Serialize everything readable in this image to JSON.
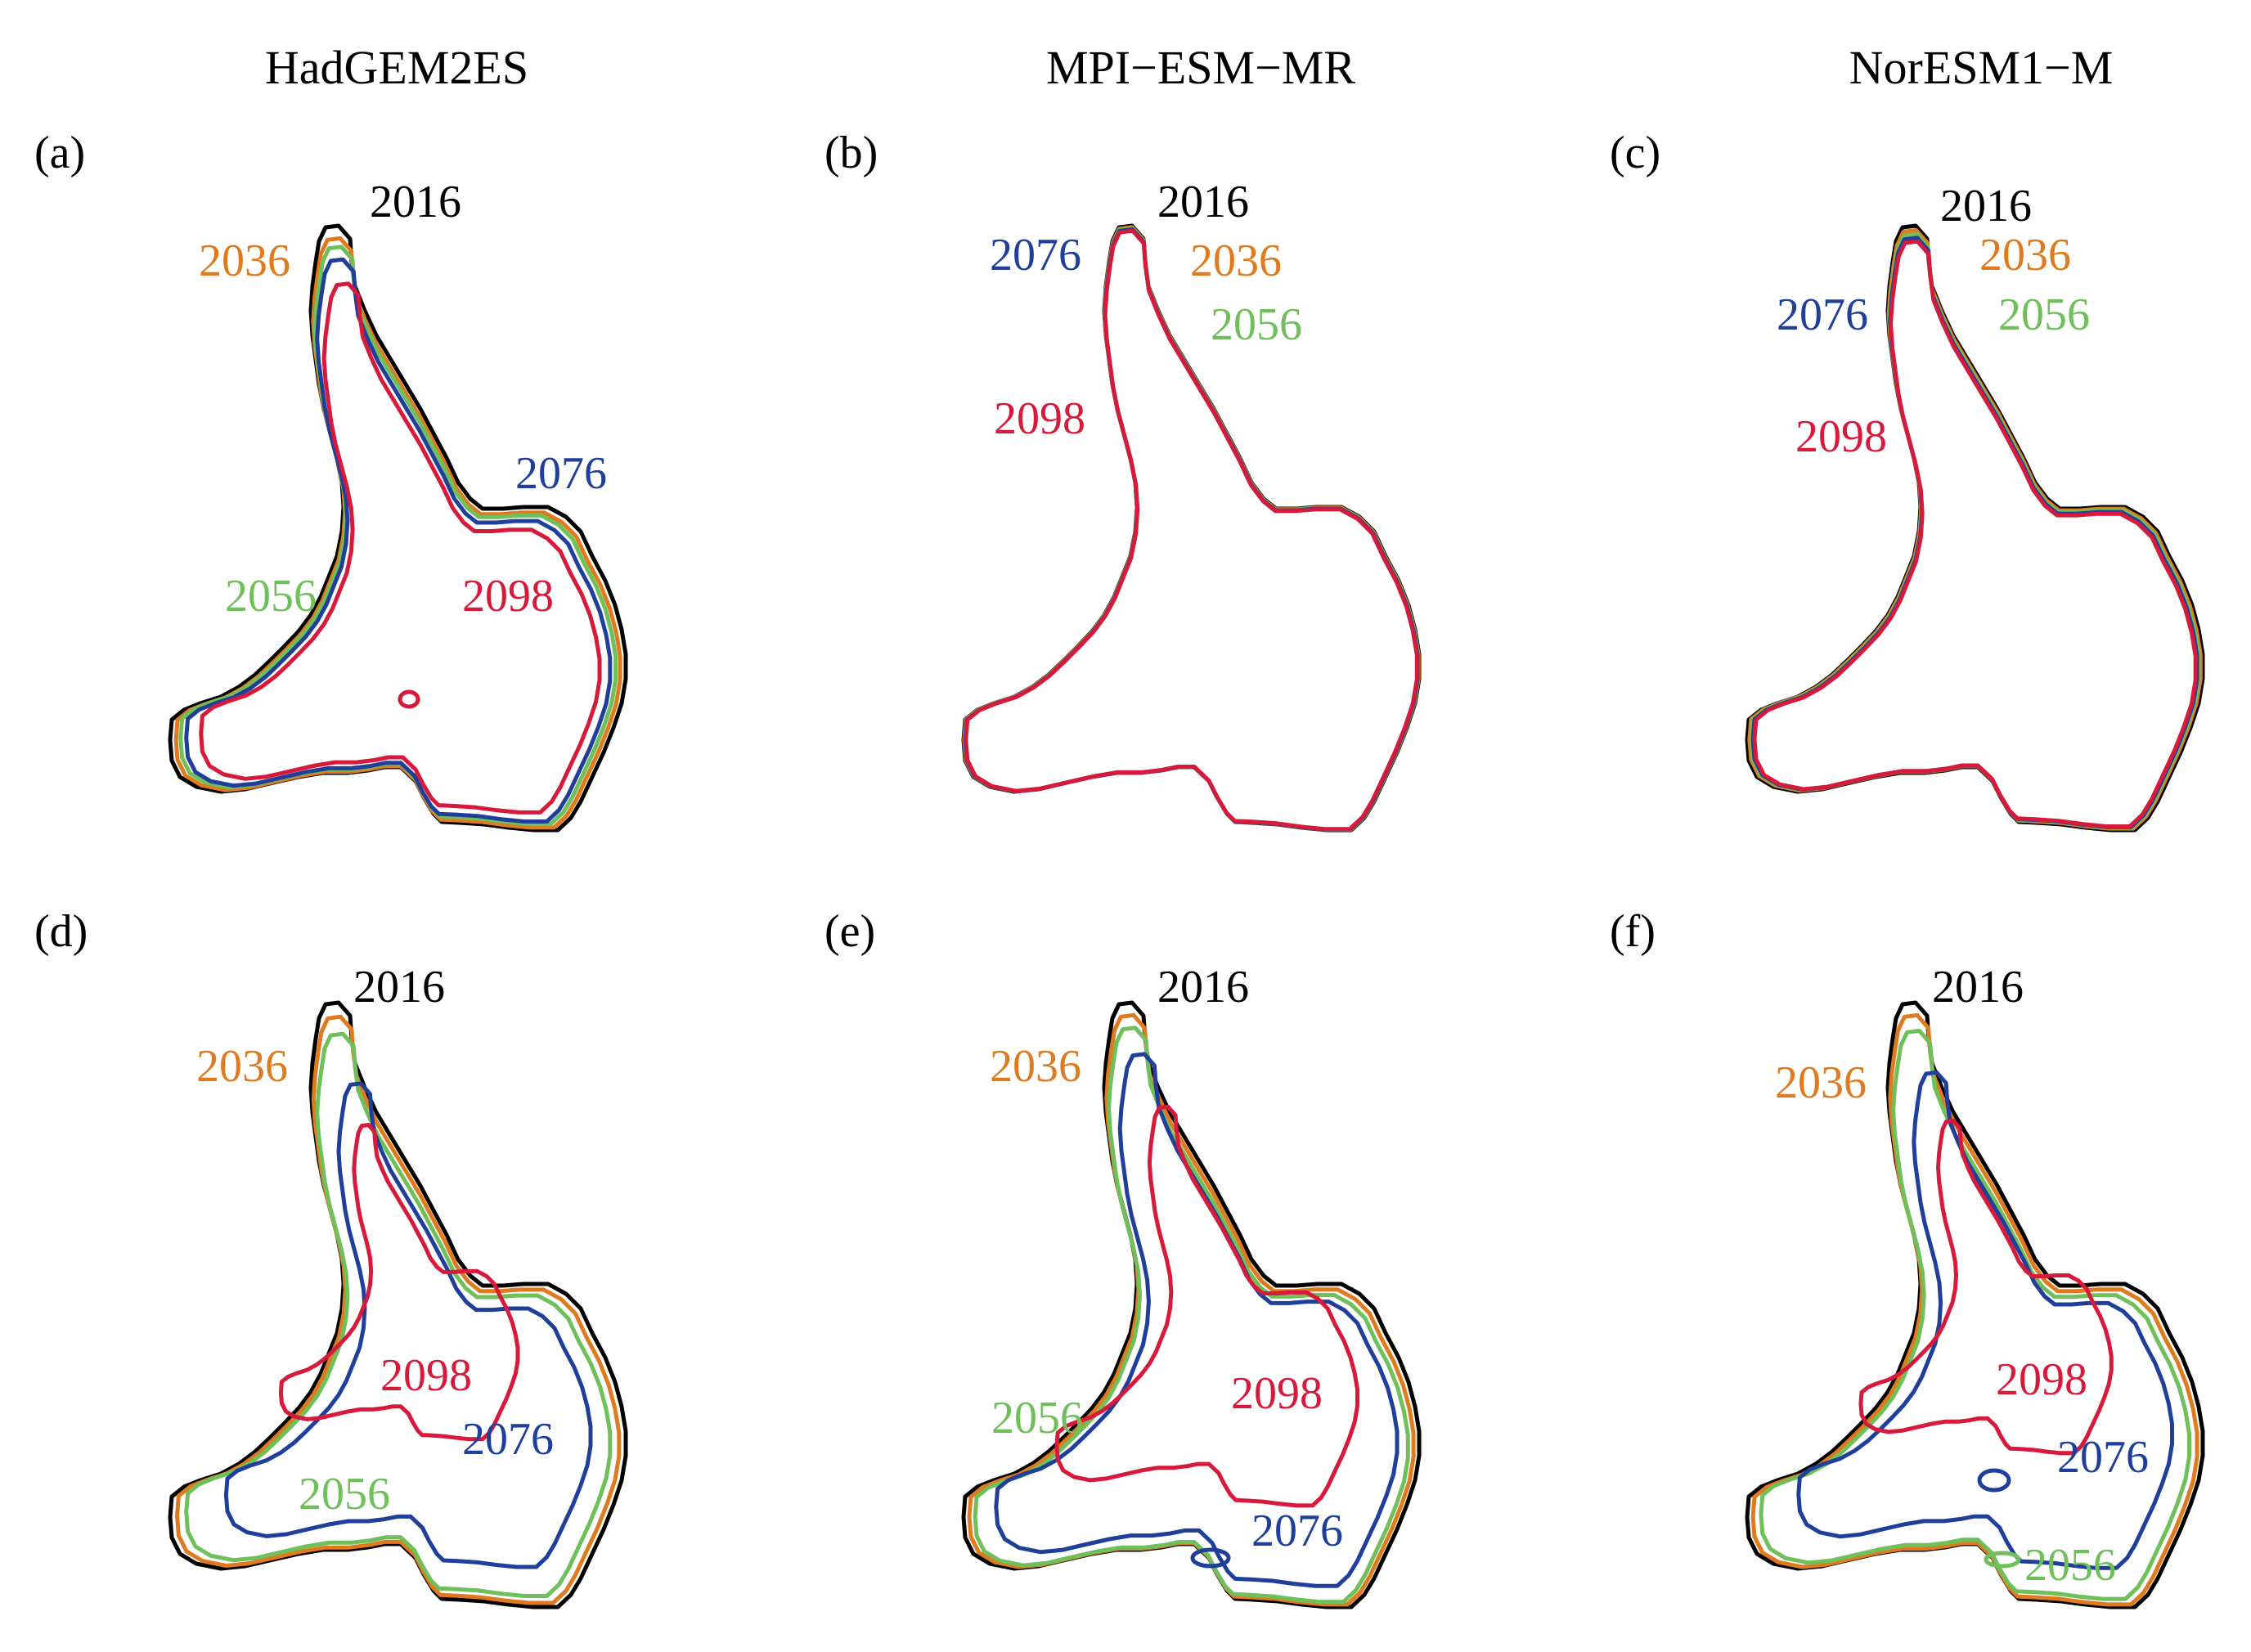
{
  "figure": {
    "columns": [
      "HadGEM2ES",
      "MPI−ESM−MR",
      "NorESM1−M"
    ],
    "colors": {
      "2016": "#000000",
      "2036": "#e07a1f",
      "2056": "#6fbf5a",
      "2076": "#1f3f9a",
      "2098": "#d7193b"
    },
    "years": [
      "2016",
      "2036",
      "2056",
      "2076",
      "2098"
    ],
    "panels": [
      {
        "id": "a",
        "label": "(a)",
        "model": "HadGEM2ES",
        "scales": [
          1.0,
          0.975,
          0.955,
          0.93,
          0.875
        ],
        "dx": [
          0,
          0,
          0,
          0,
          0.004
        ],
        "dy": [
          0,
          0.01,
          0.015,
          0.025,
          0.04
        ]
      },
      {
        "id": "b",
        "label": "(b)",
        "model": "MPI−ESM−MR",
        "scales": [
          1.0,
          0.997,
          0.995,
          0.993,
          0.99
        ],
        "dx": [
          0,
          0,
          0,
          0,
          0
        ],
        "dy": [
          0,
          0.001,
          0.002,
          0.003,
          0.004
        ]
      },
      {
        "id": "c",
        "label": "(c)",
        "model": "NorESM1−M",
        "scales": [
          1.0,
          0.99,
          0.982,
          0.975,
          0.968
        ],
        "dx": [
          0,
          0,
          0,
          0,
          0
        ],
        "dy": [
          0,
          0.003,
          0.006,
          0.009,
          0.012
        ]
      },
      {
        "id": "d",
        "label": "(d)",
        "model": "HadGEM2ES",
        "scales": [
          1.0,
          0.97,
          0.93,
          0.8,
          0.52
        ],
        "dx": [
          0,
          0,
          0,
          0.02,
          0.0
        ],
        "dy": [
          0,
          0.01,
          0.02,
          0.04,
          -0.05
        ]
      },
      {
        "id": "e",
        "label": "(e)",
        "model": "MPI−ESM−MR",
        "scales": [
          1.0,
          0.975,
          0.95,
          0.88,
          0.66
        ],
        "dx": [
          0,
          0,
          0,
          0.01,
          0.03
        ],
        "dy": [
          0,
          0.01,
          0.02,
          0.03,
          0.0
        ]
      },
      {
        "id": "f",
        "label": "(f)",
        "model": "NorESM1−M",
        "scales": [
          1.0,
          0.975,
          0.94,
          0.82,
          0.55
        ],
        "dx": [
          0,
          0,
          0,
          0.02,
          0.02
        ],
        "dy": [
          0,
          0.01,
          0.02,
          0.03,
          -0.04
        ]
      }
    ],
    "labels": [
      {
        "panel": "a",
        "year": "2016",
        "text": "2016"
      },
      {
        "panel": "a",
        "year": "2036",
        "text": "2036"
      },
      {
        "panel": "a",
        "year": "2076",
        "text": "2076"
      },
      {
        "panel": "a",
        "year": "2056",
        "text": "2056"
      },
      {
        "panel": "a",
        "year": "2098",
        "text": "2098"
      },
      {
        "panel": "b",
        "year": "2016",
        "text": "2016"
      },
      {
        "panel": "b",
        "year": "2076",
        "text": "2076"
      },
      {
        "panel": "b",
        "year": "2036",
        "text": "2036"
      },
      {
        "panel": "b",
        "year": "2056",
        "text": "2056"
      },
      {
        "panel": "b",
        "year": "2098",
        "text": "2098"
      },
      {
        "panel": "c",
        "year": "2016",
        "text": "2016"
      },
      {
        "panel": "c",
        "year": "2036",
        "text": "2036"
      },
      {
        "panel": "c",
        "year": "2076",
        "text": "2076"
      },
      {
        "panel": "c",
        "year": "2056",
        "text": "2056"
      },
      {
        "panel": "c",
        "year": "2098",
        "text": "2098"
      },
      {
        "panel": "d",
        "year": "2016",
        "text": "2016"
      },
      {
        "panel": "d",
        "year": "2036",
        "text": "2036"
      },
      {
        "panel": "d",
        "year": "2098",
        "text": "2098"
      },
      {
        "panel": "d",
        "year": "2076",
        "text": "2076"
      },
      {
        "panel": "d",
        "year": "2056",
        "text": "2056"
      },
      {
        "panel": "e",
        "year": "2016",
        "text": "2016"
      },
      {
        "panel": "e",
        "year": "2036",
        "text": "2036"
      },
      {
        "panel": "e",
        "year": "2098",
        "text": "2098"
      },
      {
        "panel": "e",
        "year": "2056",
        "text": "2056"
      },
      {
        "panel": "e",
        "year": "2076",
        "text": "2076"
      },
      {
        "panel": "f",
        "year": "2016",
        "text": "2016"
      },
      {
        "panel": "f",
        "year": "2036",
        "text": "2036"
      },
      {
        "panel": "f",
        "year": "2098",
        "text": "2098"
      },
      {
        "panel": "f",
        "year": "2076",
        "text": "2076"
      },
      {
        "panel": "f",
        "year": "2056",
        "text": "2056"
      }
    ]
  }
}
